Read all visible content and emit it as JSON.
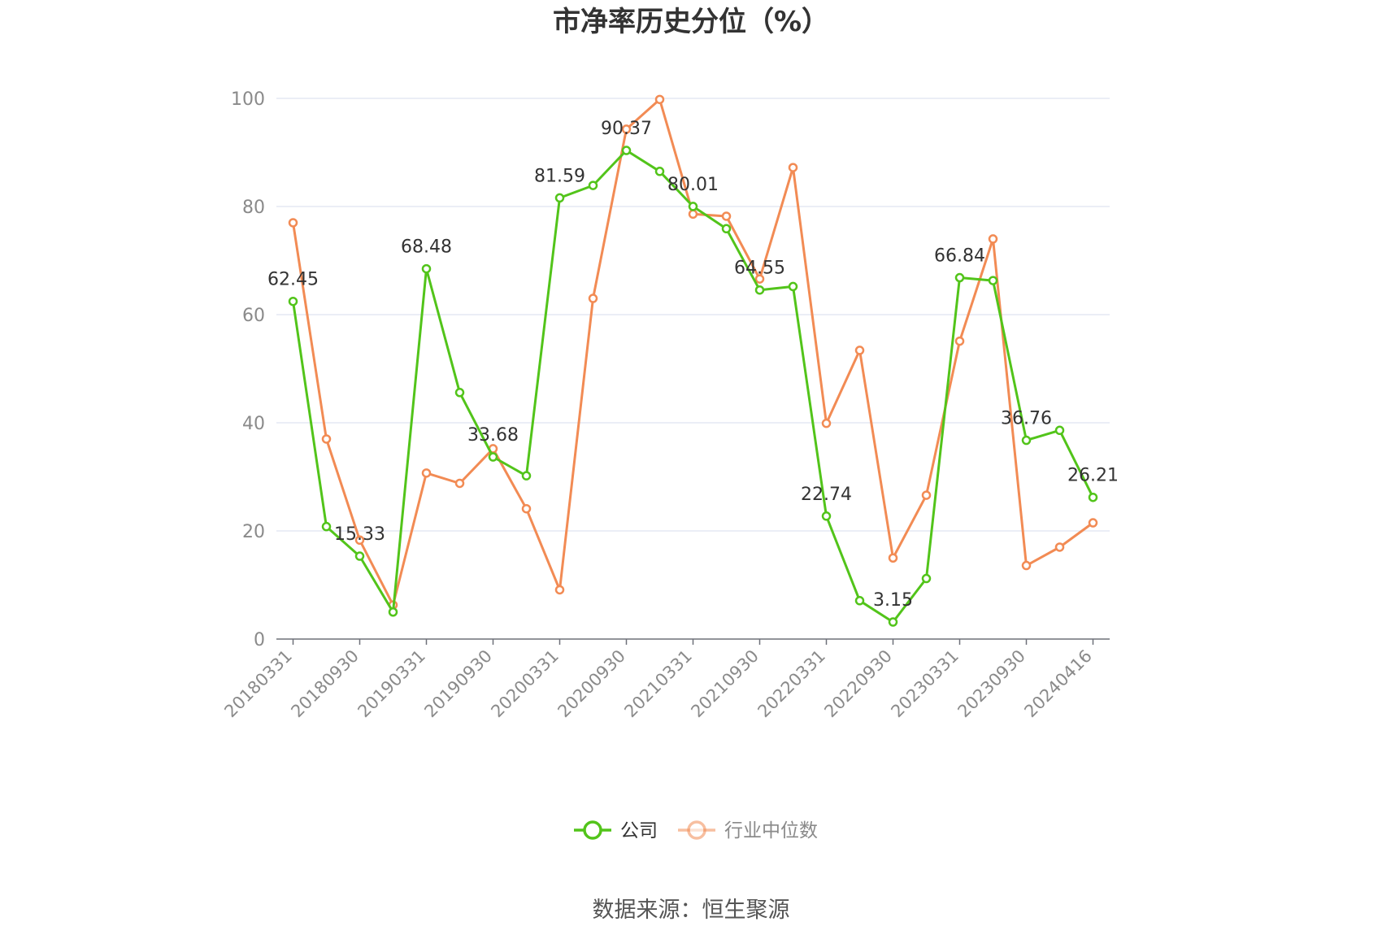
{
  "chart_data": {
    "type": "line",
    "title": "市净率历史分位（%）",
    "ylim": [
      0,
      100
    ],
    "yticks": [
      0,
      20,
      40,
      60,
      80,
      100
    ],
    "x_tick_labels": [
      "20180331",
      "20180930",
      "20190331",
      "20190930",
      "20200331",
      "20200930",
      "20210331",
      "20210930",
      "20220331",
      "20220930",
      "20230331",
      "20230930",
      "20240416"
    ],
    "grid": true,
    "legend_position": "bottom",
    "series": [
      {
        "name": "公司",
        "color": "#52c41a",
        "values": [
          62.45,
          20.8,
          15.33,
          5.0,
          68.48,
          45.6,
          33.68,
          30.2,
          81.59,
          83.9,
          90.37,
          86.5,
          80.01,
          75.9,
          64.55,
          65.2,
          22.74,
          7.1,
          3.15,
          11.2,
          66.84,
          66.3,
          36.76,
          38.6,
          26.21
        ],
        "labeled_indices": [
          0,
          2,
          4,
          6,
          8,
          10,
          12,
          14,
          16,
          18,
          20,
          22,
          24
        ]
      },
      {
        "name": "行业中位数",
        "color": "#f28b54",
        "values": [
          77.0,
          37.0,
          18.3,
          6.3,
          30.7,
          28.8,
          35.2,
          24.1,
          9.1,
          63.0,
          94.3,
          99.8,
          78.6,
          78.2,
          66.6,
          87.2,
          39.9,
          53.4,
          15.0,
          26.6,
          55.1,
          74.0,
          13.6,
          17.0,
          21.5
        ]
      }
    ]
  },
  "footer": {
    "source": "数据来源：恒生聚源"
  }
}
